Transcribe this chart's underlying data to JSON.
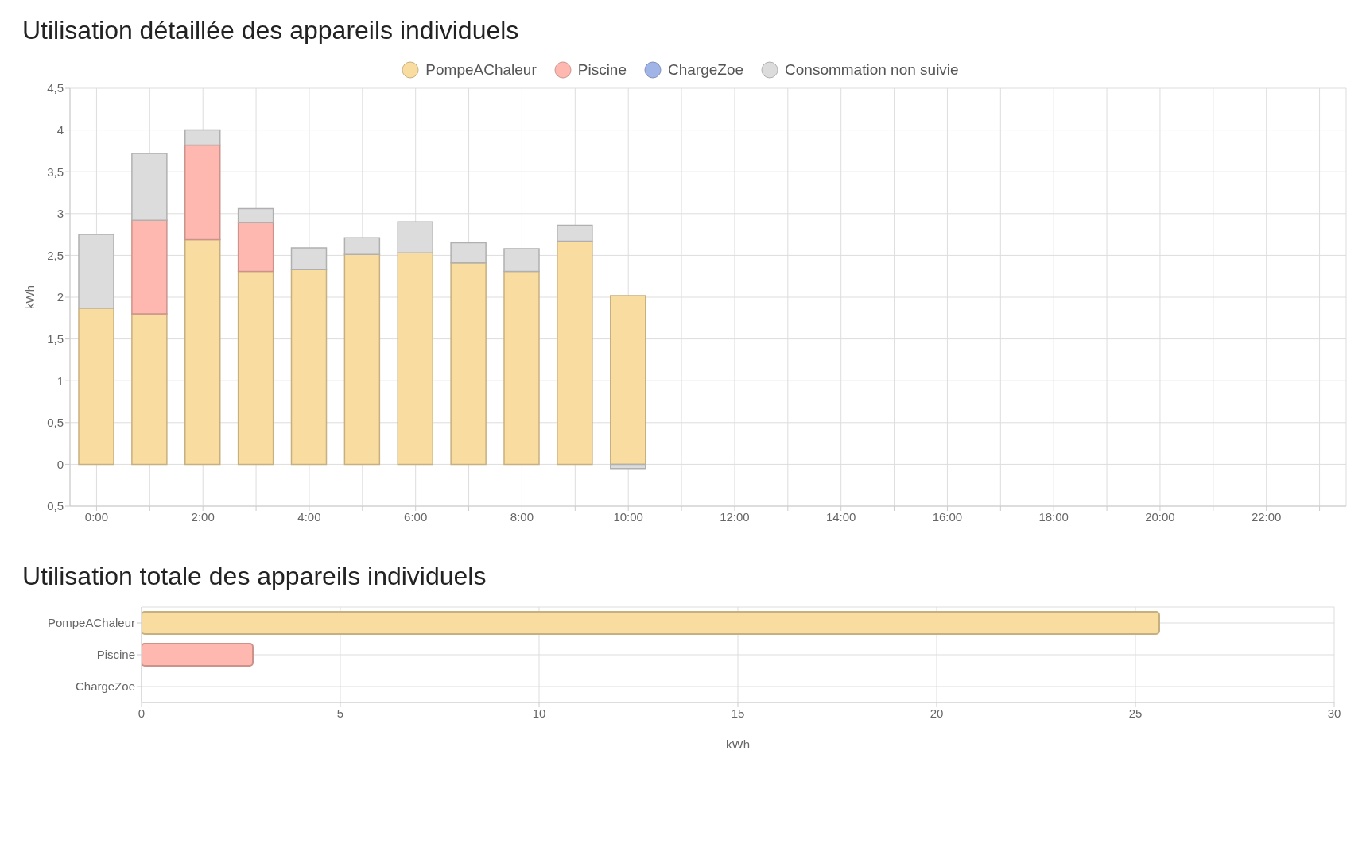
{
  "chart_data": [
    {
      "type": "bar",
      "title": "Utilisation détaillée des appareils individuels",
      "ylabel": "kWh",
      "stacked": true,
      "legend": "top",
      "grid": true,
      "categories": [
        "0:00",
        null,
        "2:00",
        null,
        "4:00",
        null,
        "6:00",
        null,
        "8:00",
        null,
        "10:00",
        null,
        "12:00",
        null,
        "14:00",
        null,
        "16:00",
        null,
        "18:00",
        null,
        "20:00",
        null,
        "22:00",
        null
      ],
      "ylim": [
        -0.5,
        4.5
      ],
      "yticks": [
        {
          "value": -0.5,
          "label": "0,5"
        },
        {
          "value": 0,
          "label": "0"
        },
        {
          "value": 0.5,
          "label": "0,5"
        },
        {
          "value": 1,
          "label": "1"
        },
        {
          "value": 1.5,
          "label": "1,5"
        },
        {
          "value": 2,
          "label": "2"
        },
        {
          "value": 2.5,
          "label": "2,5"
        },
        {
          "value": 3,
          "label": "3"
        },
        {
          "value": 3.5,
          "label": "3,5"
        },
        {
          "value": 4,
          "label": "4"
        },
        {
          "value": 4.5,
          "label": "4,5"
        }
      ],
      "series": [
        {
          "name": "PompeAChaleur",
          "color": "#f9dca0",
          "values": [
            1.87,
            1.8,
            2.69,
            2.31,
            2.33,
            2.51,
            2.53,
            2.41,
            2.31,
            2.67,
            2.02,
            null,
            null,
            null,
            null,
            null,
            null,
            null,
            null,
            null,
            null,
            null,
            null,
            null
          ]
        },
        {
          "name": "Piscine",
          "color": "#ffb8b0",
          "values": [
            null,
            1.12,
            1.13,
            0.58,
            null,
            null,
            null,
            null,
            null,
            null,
            null,
            null,
            null,
            null,
            null,
            null,
            null,
            null,
            null,
            null,
            null,
            null,
            null,
            null
          ]
        },
        {
          "name": "ChargeZoe",
          "color": "#a0b4e8",
          "values": [
            null,
            null,
            null,
            null,
            null,
            null,
            null,
            null,
            null,
            null,
            null,
            null,
            null,
            null,
            null,
            null,
            null,
            null,
            null,
            null,
            null,
            null,
            null,
            null
          ]
        },
        {
          "name": "Consommation non suivie",
          "color": "#dcdcdc",
          "values": [
            0.88,
            0.8,
            0.18,
            0.17,
            0.26,
            0.2,
            0.37,
            0.24,
            0.27,
            0.19,
            -0.05,
            null,
            null,
            null,
            null,
            null,
            null,
            null,
            null,
            null,
            null,
            null,
            null,
            null
          ]
        }
      ]
    },
    {
      "type": "bar",
      "title": "Utilisation totale des appareils individuels",
      "orientation": "horizontal",
      "xlabel": "kWh",
      "grid": true,
      "categories": [
        "PompeAChaleur",
        "Piscine",
        "ChargeZoe"
      ],
      "values": [
        25.6,
        2.8,
        0
      ],
      "colors": [
        "#f9dca0",
        "#ffb8b0",
        "#a0b4e8"
      ],
      "xlim": [
        0,
        30
      ],
      "xticks": [
        0,
        5,
        10,
        15,
        20,
        25,
        30
      ]
    }
  ]
}
